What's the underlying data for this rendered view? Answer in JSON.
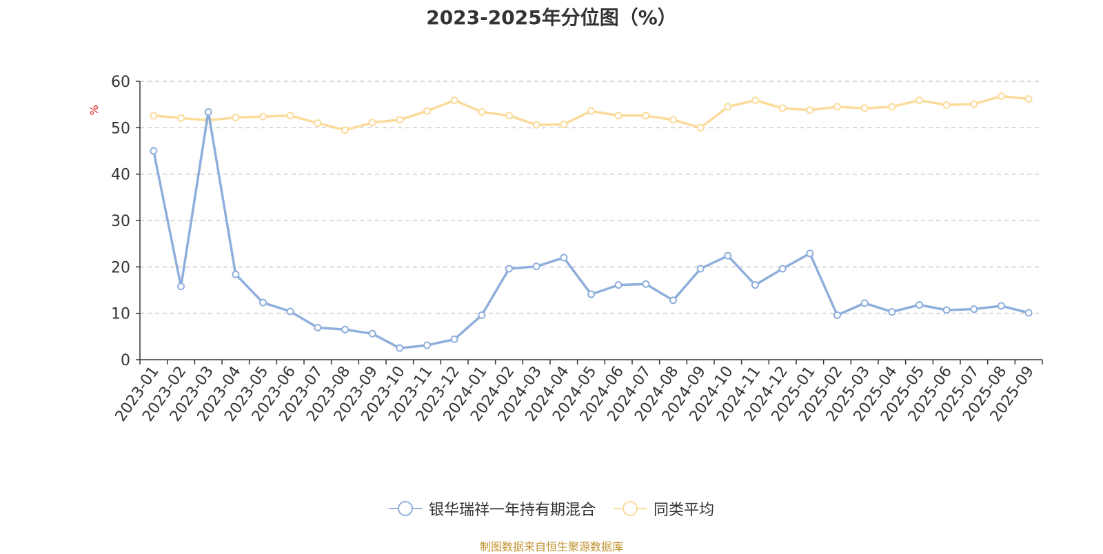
{
  "source_note": "制图数据来自恒生聚源数据库",
  "chart_data": {
    "type": "line",
    "title": "2023-2025年分位图（%）",
    "xlabel": "",
    "ylabel": "%",
    "ylim": [
      0,
      60
    ],
    "yticks": [
      0,
      10,
      20,
      30,
      40,
      50,
      60
    ],
    "grid": true,
    "legend_position": "bottom",
    "categories": [
      "2023-01",
      "2023-02",
      "2023-03",
      "2023-04",
      "2023-05",
      "2023-06",
      "2023-07",
      "2023-08",
      "2023-09",
      "2023-10",
      "2023-11",
      "2023-12",
      "2024-01",
      "2024-02",
      "2024-03",
      "2024-04",
      "2024-05",
      "2024-06",
      "2024-07",
      "2024-08",
      "2024-09",
      "2024-10",
      "2024-11",
      "2024-12",
      "2025-01",
      "2025-02",
      "2025-03",
      "2025-04",
      "2025-05",
      "2025-06",
      "2025-07",
      "2025-08",
      "2025-09"
    ],
    "series": [
      {
        "name": "银华瑞祥一年持有期混合",
        "color": "#8eaedb",
        "values": [
          45.0,
          15.8,
          53.4,
          18.4,
          12.3,
          10.4,
          6.9,
          6.5,
          5.6,
          2.5,
          3.1,
          4.4,
          9.6,
          19.6,
          20.1,
          22.0,
          14.1,
          16.1,
          16.3,
          12.8,
          19.6,
          22.4,
          16.1,
          19.6,
          22.9,
          9.6,
          12.2,
          10.3,
          11.8,
          10.7,
          10.9,
          11.6,
          10.1
        ]
      },
      {
        "name": "同类平均",
        "color": "#fbdb9a",
        "values": [
          52.6,
          52.1,
          51.6,
          52.2,
          52.4,
          52.6,
          51.0,
          49.5,
          51.1,
          51.7,
          53.6,
          55.9,
          53.4,
          52.6,
          50.6,
          50.7,
          53.6,
          52.6,
          52.6,
          51.7,
          50.0,
          54.5,
          55.9,
          54.2,
          53.8,
          54.5,
          54.2,
          54.5,
          55.9,
          54.9,
          55.1,
          56.8,
          56.2
        ]
      }
    ]
  }
}
